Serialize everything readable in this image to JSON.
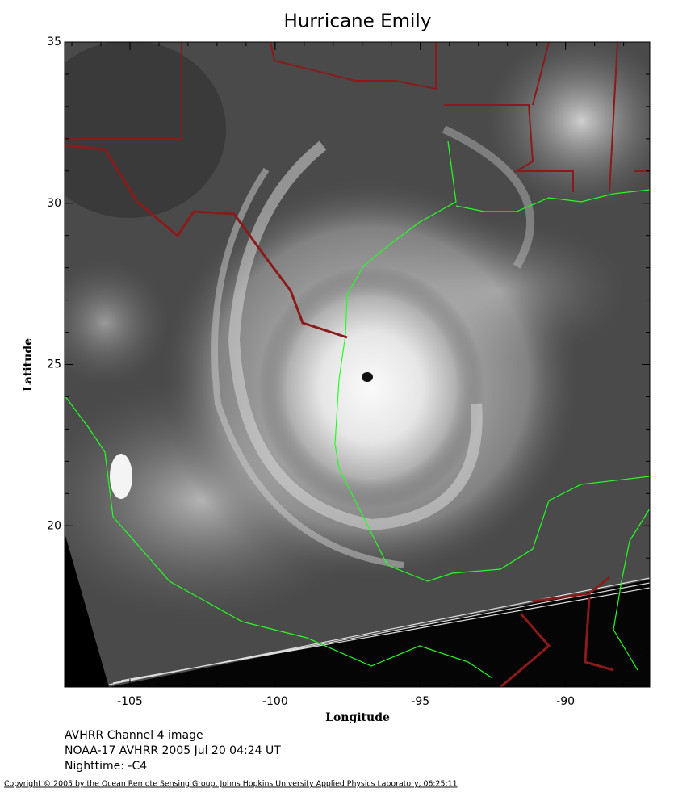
{
  "map": {
    "title": "Hurricane Emily",
    "xlabel": "Longitude",
    "ylabel": "Latitude",
    "xlim": [
      -107.25,
      -87.1
    ],
    "ylim": [
      15,
      35
    ],
    "xticks": [
      -105,
      -100,
      -95,
      -90
    ],
    "yticks": [
      20,
      25,
      30,
      35
    ],
    "xminorticks": [
      -107,
      -106,
      -105,
      -104,
      -103,
      -102,
      -101,
      -100,
      -99,
      -98,
      -97,
      -96,
      -95,
      -94,
      -93,
      -92,
      -91,
      -90,
      -89,
      -88
    ],
    "yminorticks": [
      16,
      17,
      18,
      19,
      20,
      21,
      22,
      23,
      24,
      25,
      26,
      27,
      28,
      29,
      30,
      31,
      32,
      33,
      34,
      35
    ]
  },
  "notes": [
    "AVHRR Channel 4 image",
    "NOAA-17 AVHRR 2005 Jul 20 04:24 UT",
    "Nighttime: -C4"
  ],
  "copyright": "Copyright © 2005 by the Ocean Remote Sensing Group, Johns Hopkins University Applied Physics Laboratory, 06:25:11"
}
